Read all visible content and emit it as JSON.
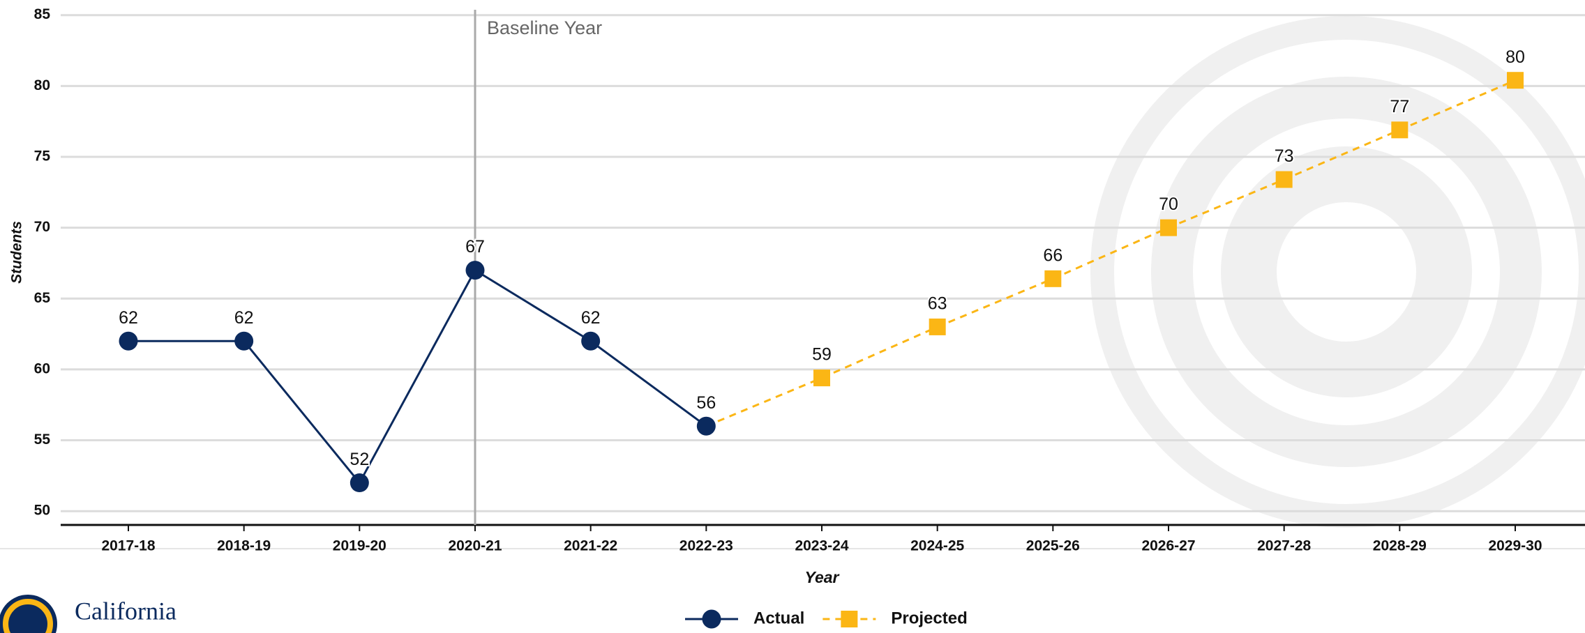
{
  "chart_data": {
    "type": "line",
    "categories": [
      "2017-18",
      "2018-19",
      "2019-20",
      "2020-21",
      "2021-22",
      "2022-23",
      "2023-24",
      "2024-25",
      "2025-26",
      "2026-27",
      "2027-28",
      "2028-29",
      "2029-30"
    ],
    "series": [
      {
        "name": "Actual",
        "color": "#0b2a5e",
        "marker": "circle",
        "dash": false,
        "values": [
          62,
          62,
          52,
          67,
          62,
          56,
          null,
          null,
          null,
          null,
          null,
          null,
          null
        ]
      },
      {
        "name": "Projected",
        "color": "#fbb615",
        "marker": "square",
        "dash": true,
        "values": [
          null,
          null,
          null,
          null,
          null,
          56,
          59.4,
          63,
          66.4,
          70,
          73.4,
          76.9,
          80.4
        ],
        "value_labels": [
          null,
          null,
          null,
          null,
          null,
          null,
          "59",
          "63",
          "66",
          "70",
          "73",
          "77",
          "80"
        ]
      }
    ],
    "ylim": [
      50,
      85
    ],
    "yticks": [
      50,
      55,
      60,
      65,
      70,
      75,
      80,
      85
    ],
    "grid": true,
    "x_label": "Year",
    "y_label": "Students",
    "annotation": {
      "category_index": 3,
      "text": "Baseline Year"
    },
    "logo_text": "California"
  }
}
